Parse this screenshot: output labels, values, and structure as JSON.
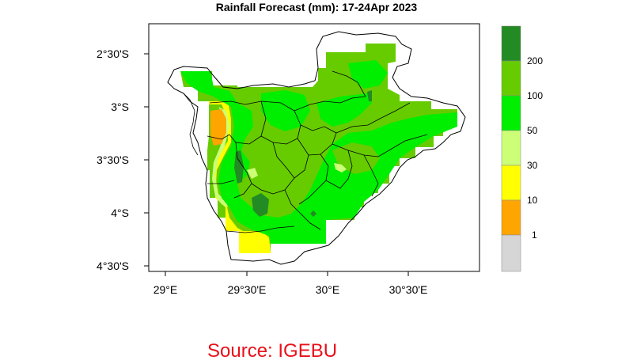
{
  "map": {
    "title": "Rainfall Forecast (mm): 17-24Apr 2023",
    "lat_ticks": [
      "2°30'S",
      "3°S",
      "3°30'S",
      "4°S",
      "4°30'S"
    ],
    "lon_ticks": [
      "29°E",
      "29°30'E",
      "30°E",
      "30°30'E"
    ],
    "legend": {
      "labels": [
        "200",
        "100",
        "50",
        "30",
        "10",
        "1"
      ],
      "colors": [
        "#238b23",
        "#66cc00",
        "#00ee00",
        "#ccff77",
        "#ffff00",
        "#ffa500",
        "#d6d6d6"
      ]
    },
    "fill_colors": {
      "background": "#ffffff",
      "yellow": "#ffff00",
      "orange": "#ffa500",
      "light_green": "#ccff77",
      "bright_green": "#00ee00",
      "mid_green": "#66cc00",
      "dark_green": "#238b23"
    }
  },
  "source": "Source: IGEBU"
}
